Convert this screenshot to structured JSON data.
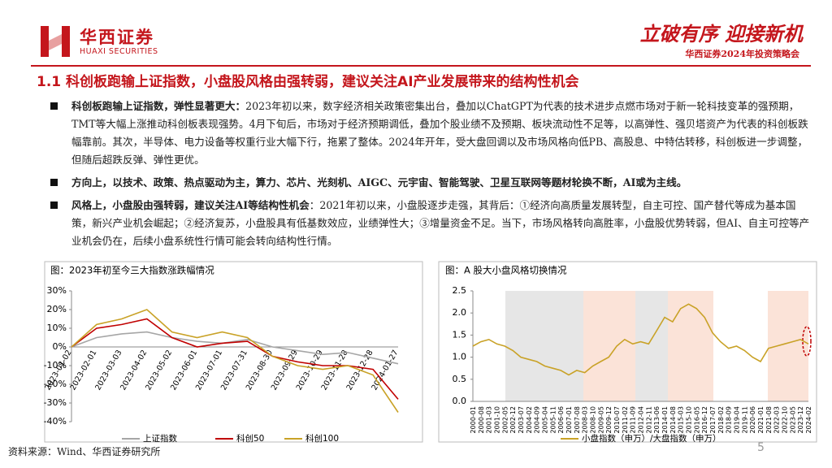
{
  "header": {
    "logo_cn": "华西证券",
    "logo_en": "HUAXI SECURITIES",
    "slogan": "立破有序 迎接新机",
    "conference": "华西证券2024年投资策略会"
  },
  "title": "1.1 科创板跑输上证指数，小盘股风格由强转弱，建议关注AI产业发展带来的结构性机会",
  "bullets": [
    {
      "lead": "科创板跑输上证指数，弹性显著更大：",
      "text": "2023年初以来，数字经济相关政策密集出台，叠加以ChatGPT为代表的技术进步点燃市场对于新一轮科技变革的强预期，TMT等大幅上涨推动科创板表现强势。4月下旬后，市场对于经济预期调低，叠加个股业绩不及预期、板块流动性不足等，以高弹性、强贝塔资产为代表的科创板跌幅靠前。其次，半导体、电力设备等权重行业大幅下行，拖累了整体。2024年开年，受大盘回调以及市场风格向低PB、高股息、中特估转移，科创板进一步调整，但随后超跌反弹、弹性更优。"
    },
    {
      "lead": "方向上，以技术、政策、热点驱动为主，算力、芯片、光刻机、AIGC、元宇宙、智能驾驶、卫星互联网等题材轮换不断，AI或为主线。",
      "text": ""
    },
    {
      "lead": "风格上，小盘股由强转弱，建议关注AI等结构性机会",
      "text": "：2021年初以来，小盘股逐步走强，其背后：①经济向高质量发展转型，自主可控、国产替代等成为基本国策，新兴产业机会崛起；②经济复苏，小盘股具有低基数效应，业绩弹性大；③增量资金不足。当下，市场风格转向高胜率，小盘股优势转弱，但AI、自主可控等产业机会仍在，后续小盘系统性行情可能会转向结构性行情。"
    }
  ],
  "chart_data": [
    {
      "type": "line",
      "title": "图：2023年初至今三大指数涨跌幅情况",
      "categories": [
        "2023-01-02",
        "2023-02-01",
        "2023-03-03",
        "2023-04-02",
        "2023-05-02",
        "2023-06-01",
        "2023-07-01",
        "2023-07-31",
        "2023-08-30",
        "2023-09-29",
        "2023-10-29",
        "2023-11-28",
        "2023-12-28",
        "2024-01-27"
      ],
      "series": [
        {
          "name": "上证指数",
          "color": "#a6a6a6",
          "values": [
            0,
            5,
            7,
            8,
            5,
            3,
            2,
            4,
            0,
            -2,
            -4,
            -3,
            -6,
            -9
          ]
        },
        {
          "name": "科创50",
          "color": "#c00000",
          "values": [
            0,
            10,
            12,
            15,
            5,
            0,
            2,
            3,
            -5,
            -8,
            -10,
            -10,
            -12,
            -28
          ]
        },
        {
          "name": "科创100",
          "color": "#c9a227",
          "values": [
            0,
            12,
            15,
            20,
            8,
            5,
            8,
            5,
            -5,
            -10,
            -12,
            -10,
            -15,
            -35
          ]
        }
      ],
      "ylim": [
        -40,
        30
      ],
      "yticks": [
        {
          "value": 30,
          "label": "30%"
        },
        {
          "value": 20,
          "label": "20%"
        },
        {
          "value": 10,
          "label": "10%"
        },
        {
          "value": 0,
          "label": "0%"
        },
        {
          "value": -10,
          "label": "-10%"
        },
        {
          "value": -20,
          "label": "-20%"
        },
        {
          "value": -30,
          "label": "-30%"
        },
        {
          "value": -40,
          "label": "-40%"
        }
      ]
    },
    {
      "type": "line",
      "title": "图：A 股大小盘风格切换情况",
      "categories": [
        "2000-01",
        "2000-08",
        "2001-03",
        "2001-10",
        "2002-05",
        "2002-12",
        "2003-07",
        "2004-02",
        "2004-09",
        "2005-04",
        "2005-11",
        "2006-06",
        "2007-01",
        "2007-08",
        "2008-03",
        "2008-10",
        "2009-05",
        "2009-12",
        "2010-07",
        "2011-02",
        "2011-09",
        "2012-04",
        "2012-11",
        "2013-06",
        "2014-01",
        "2014-08",
        "2015-03",
        "2015-10",
        "2016-05",
        "2016-12",
        "2017-07",
        "2018-02",
        "2018-09",
        "2019-04",
        "2019-11",
        "2020-06",
        "2021-01",
        "2021-08",
        "2022-03",
        "2022-10",
        "2023-05",
        "2023-12",
        "2024-02"
      ],
      "series": [
        {
          "name": "小盘指数（申万）/大盘指数（申万）",
          "color": "#c9a227",
          "values": [
            1.25,
            1.35,
            1.4,
            1.3,
            1.25,
            1.15,
            1.0,
            0.95,
            0.9,
            0.8,
            0.75,
            0.7,
            0.6,
            0.7,
            0.65,
            0.8,
            0.9,
            1.0,
            1.25,
            1.4,
            1.3,
            1.35,
            1.3,
            1.6,
            1.9,
            1.8,
            2.1,
            2.2,
            2.1,
            1.9,
            1.55,
            1.35,
            1.2,
            1.25,
            1.15,
            1.0,
            0.9,
            1.2,
            1.25,
            1.3,
            1.35,
            1.4,
            1.3
          ]
        }
      ],
      "ylim": [
        0,
        2.5
      ],
      "yticks": [
        {
          "value": 0,
          "label": "0.0"
        },
        0.5,
        {
          "value": 1,
          "label": "1.0"
        },
        1.5,
        {
          "value": 2,
          "label": "2.0"
        },
        2.5
      ]
    }
  ],
  "footer": "资料来源：Wind、华西证券研究所",
  "page": "5"
}
